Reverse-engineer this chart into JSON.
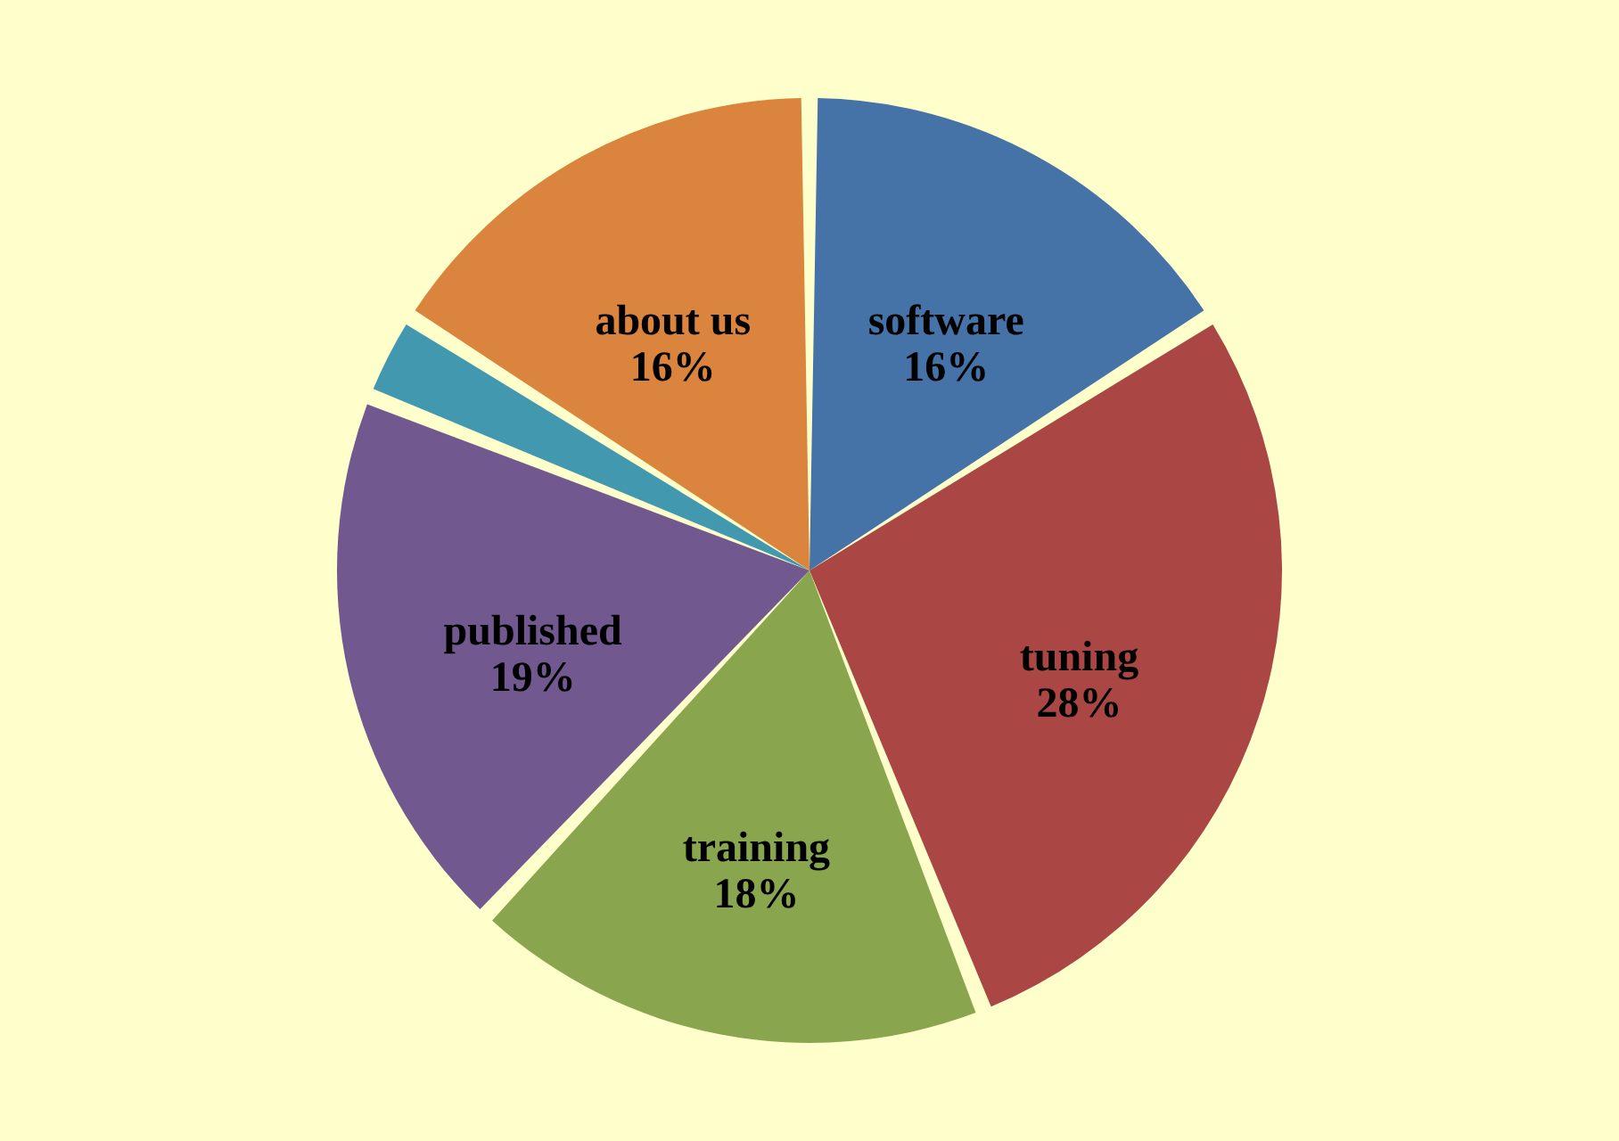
{
  "chart_data": {
    "type": "pie",
    "categories": [
      "software",
      "tuning",
      "training",
      "published",
      null,
      "about us"
    ],
    "values": [
      16,
      28,
      18,
      19,
      3,
      16
    ],
    "colors": [
      "#4572a7",
      "#aa4643",
      "#89a54e",
      "#71588f",
      "#4198af",
      "#db843d"
    ],
    "value_labels": [
      "16%",
      "28%",
      "18%",
      "19%",
      null,
      "16%"
    ]
  }
}
